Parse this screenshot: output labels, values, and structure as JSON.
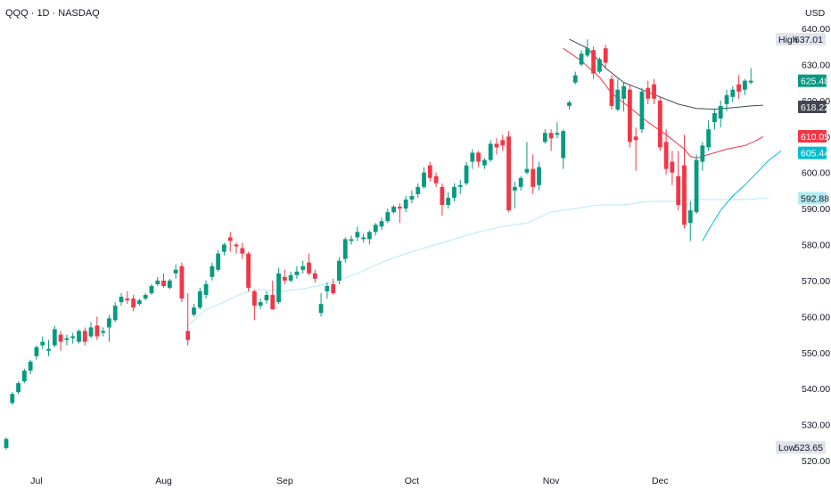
{
  "chart_data": {
    "type": "candlestick",
    "title": "QQQ · 1D · NASDAQ",
    "currency": "USD",
    "y_axis": {
      "ticks": [
        520,
        530,
        540,
        550,
        560,
        570,
        580,
        590,
        600,
        610,
        620,
        630,
        640
      ],
      "tick_labels": [
        "520.00",
        "530.00",
        "540.00",
        "550.00",
        "560.00",
        "570.00",
        "580.00",
        "590.00",
        "600.00",
        "610.00",
        "620.00",
        "630.00",
        "640.00"
      ],
      "range": [
        518.5,
        642.5
      ]
    },
    "x_axis": {
      "labels": [
        {
          "label": "Jul",
          "index": 5
        },
        {
          "label": "Aug",
          "index": 26
        },
        {
          "label": "Sep",
          "index": 46
        },
        {
          "label": "Oct",
          "index": 67
        },
        {
          "label": "Nov",
          "index": 90
        },
        {
          "label": "Dec",
          "index": 108
        }
      ]
    },
    "price_tags": [
      {
        "prefix": "High",
        "text": "637.01",
        "value": 637.01,
        "bg": "#e0e3eb",
        "fg": "#131722"
      },
      {
        "prefix": "",
        "text": "625.48",
        "value": 625.48,
        "bg": "#089981",
        "fg": "#ffffff"
      },
      {
        "prefix": "",
        "text": "618.22",
        "value": 618.22,
        "bg": "#434651",
        "fg": "#ffffff"
      },
      {
        "prefix": "",
        "text": "610.05",
        "value": 610.05,
        "bg": "#f23645",
        "fg": "#ffffff"
      },
      {
        "prefix": "",
        "text": "605.44",
        "value": 605.44,
        "bg": "#00bcd4",
        "fg": "#ffffff"
      },
      {
        "prefix": "",
        "text": "592.88",
        "value": 592.88,
        "bg": "#b2ebf2",
        "fg": "#131722"
      },
      {
        "prefix": "Low",
        "text": "523.65",
        "value": 523.65,
        "bg": "#e0e3eb",
        "fg": "#131722"
      }
    ],
    "colors": {
      "up": "#089981",
      "down": "#f23645",
      "line_black": "#434651",
      "line_red": "#f23645",
      "line_cyan": "#00bcd4",
      "line_lightcyan": "#b2ebf2"
    },
    "candles": [
      [
        523.5,
        526.5,
        523.0,
        526.0
      ],
      [
        536.0,
        539.0,
        535.5,
        538.5
      ],
      [
        539.0,
        542.0,
        538.5,
        541.5
      ],
      [
        542.0,
        545.5,
        541.5,
        545.0
      ],
      [
        545.0,
        548.0,
        544.0,
        547.5
      ],
      [
        549.0,
        552.0,
        548.0,
        551.5
      ],
      [
        552.0,
        554.5,
        551.0,
        553.0
      ],
      [
        550.5,
        553.5,
        549.0,
        551.0
      ],
      [
        552.0,
        557.5,
        551.5,
        556.5
      ],
      [
        555.0,
        556.0,
        550.5,
        553.0
      ],
      [
        553.5,
        555.0,
        552.0,
        554.0
      ],
      [
        554.0,
        555.5,
        552.5,
        554.5
      ],
      [
        553.0,
        556.5,
        552.5,
        556.0
      ],
      [
        556.0,
        557.0,
        552.0,
        553.0
      ],
      [
        554.5,
        558.5,
        554.0,
        557.0
      ],
      [
        557.5,
        560.0,
        553.5,
        554.5
      ],
      [
        555.5,
        557.0,
        554.5,
        556.0
      ],
      [
        557.0,
        560.5,
        553.0,
        559.5
      ],
      [
        559.0,
        564.0,
        558.5,
        563.0
      ],
      [
        564.0,
        566.5,
        563.0,
        565.5
      ],
      [
        565.0,
        567.0,
        563.5,
        564.5
      ],
      [
        565.0,
        566.0,
        561.5,
        562.5
      ],
      [
        563.5,
        565.0,
        563.0,
        564.5
      ],
      [
        565.0,
        566.5,
        564.5,
        566.0
      ],
      [
        566.5,
        569.0,
        566.0,
        568.5
      ],
      [
        569.0,
        571.0,
        568.5,
        570.0
      ],
      [
        570.0,
        572.0,
        568.0,
        568.5
      ],
      [
        568.0,
        570.5,
        567.5,
        570.0
      ],
      [
        572.0,
        574.5,
        570.5,
        573.0
      ],
      [
        574.0,
        575.0,
        564.0,
        565.0
      ],
      [
        556.0,
        566.5,
        552.0,
        553.5
      ],
      [
        560.5,
        563.5,
        560.0,
        562.5
      ],
      [
        562.5,
        568.0,
        562.0,
        567.0
      ],
      [
        566.0,
        570.0,
        565.0,
        569.0
      ],
      [
        571.0,
        575.0,
        570.0,
        574.0
      ],
      [
        573.0,
        578.5,
        572.5,
        577.5
      ],
      [
        578.0,
        580.5,
        577.0,
        580.0
      ],
      [
        582.0,
        583.5,
        578.0,
        581.0
      ],
      [
        580.0,
        580.5,
        577.5,
        579.5
      ],
      [
        579.0,
        580.5,
        576.0,
        577.5
      ],
      [
        577.5,
        578.0,
        567.0,
        568.0
      ],
      [
        567.0,
        567.5,
        559.0,
        563.0
      ],
      [
        563.0,
        565.0,
        562.0,
        564.0
      ],
      [
        564.5,
        567.0,
        563.5,
        566.0
      ],
      [
        566.0,
        570.0,
        562.0,
        562.0
      ],
      [
        564.0,
        573.5,
        563.5,
        572.0
      ],
      [
        571.0,
        573.0,
        569.0,
        570.0
      ],
      [
        570.0,
        572.5,
        569.5,
        571.5
      ],
      [
        571.5,
        574.0,
        570.5,
        572.5
      ],
      [
        573.0,
        575.5,
        572.0,
        574.0
      ],
      [
        575.0,
        577.5,
        571.5,
        572.0
      ],
      [
        572.0,
        573.0,
        569.5,
        570.5
      ],
      [
        561.0,
        566.5,
        560.0,
        563.5
      ],
      [
        567.0,
        569.5,
        565.0,
        568.5
      ],
      [
        569.0,
        570.5,
        566.0,
        566.5
      ],
      [
        570.0,
        576.5,
        569.0,
        575.5
      ],
      [
        576.0,
        582.0,
        575.0,
        581.5
      ],
      [
        581.0,
        582.5,
        580.0,
        581.5
      ],
      [
        582.0,
        585.0,
        581.0,
        583.5
      ],
      [
        581.5,
        583.0,
        580.5,
        582.0
      ],
      [
        581.5,
        584.0,
        580.0,
        583.5
      ],
      [
        583.5,
        586.0,
        582.5,
        585.5
      ],
      [
        585.0,
        587.5,
        584.0,
        586.5
      ],
      [
        586.5,
        590.0,
        586.0,
        589.0
      ],
      [
        589.0,
        591.0,
        588.5,
        590.5
      ],
      [
        590.5,
        591.5,
        586.0,
        590.0
      ],
      [
        590.0,
        593.5,
        589.0,
        592.5
      ],
      [
        592.5,
        595.0,
        591.5,
        593.5
      ],
      [
        594.0,
        597.0,
        593.0,
        596.0
      ],
      [
        596.0,
        601.5,
        595.5,
        600.0
      ],
      [
        602.0,
        603.0,
        597.5,
        598.5
      ],
      [
        599.0,
        600.0,
        596.0,
        597.0
      ],
      [
        596.0,
        597.0,
        588.0,
        591.0
      ],
      [
        591.0,
        594.5,
        590.0,
        593.0
      ],
      [
        593.0,
        597.0,
        592.0,
        596.0
      ],
      [
        596.0,
        598.0,
        594.0,
        596.5
      ],
      [
        597.0,
        603.0,
        596.5,
        602.0
      ],
      [
        603.0,
        606.5,
        601.0,
        605.5
      ],
      [
        605.5,
        606.0,
        601.5,
        603.0
      ],
      [
        602.0,
        604.0,
        601.0,
        603.5
      ],
      [
        603.5,
        609.0,
        603.0,
        608.0
      ],
      [
        608.0,
        609.5,
        605.0,
        607.0
      ],
      [
        609.0,
        610.5,
        606.0,
        607.5
      ],
      [
        610.0,
        611.5,
        589.0,
        589.5
      ],
      [
        595.0,
        597.5,
        590.0,
        596.0
      ],
      [
        596.0,
        599.0,
        595.0,
        598.5
      ],
      [
        600.0,
        608.5,
        599.5,
        601.0
      ],
      [
        601.0,
        605.0,
        594.0,
        596.0
      ],
      [
        596.5,
        603.0,
        595.0,
        601.5
      ],
      [
        608.5,
        612.0,
        608.0,
        611.0
      ],
      [
        611.0,
        612.0,
        606.0,
        609.5
      ],
      [
        610.5,
        614.0,
        609.5,
        611.0
      ],
      [
        604.0,
        612.0,
        601.0,
        611.5
      ],
      [
        618.5,
        620.0,
        617.5,
        619.5
      ],
      [
        625.0,
        628.0,
        624.5,
        627.0
      ],
      [
        630.0,
        634.0,
        629.5,
        633.0
      ],
      [
        632.5,
        637.0,
        632.0,
        634.5
      ],
      [
        634.0,
        635.0,
        626.0,
        627.5
      ],
      [
        628.0,
        632.0,
        627.5,
        631.5
      ],
      [
        634.5,
        635.5,
        629.0,
        630.5
      ],
      [
        626.0,
        627.0,
        617.5,
        618.5
      ],
      [
        617.5,
        626.0,
        617.0,
        623.0
      ],
      [
        620.5,
        625.0,
        617.0,
        624.0
      ],
      [
        623.0,
        624.5,
        607.0,
        608.5
      ],
      [
        610.0,
        612.5,
        600.5,
        609.0
      ],
      [
        612.0,
        623.5,
        611.0,
        622.5
      ],
      [
        623.5,
        625.5,
        619.0,
        620.5
      ],
      [
        624.5,
        626.0,
        619.0,
        620.5
      ],
      [
        620.0,
        621.0,
        606.0,
        607.0
      ],
      [
        608.5,
        612.0,
        599.5,
        601.0
      ],
      [
        603.0,
        606.0,
        596.5,
        600.0
      ],
      [
        599.0,
        606.0,
        589.5,
        591.0
      ],
      [
        602.0,
        610.5,
        584.5,
        585.5
      ],
      [
        586.0,
        592.0,
        581.0,
        589.5
      ],
      [
        589.0,
        605.0,
        588.5,
        603.5
      ],
      [
        603.0,
        608.5,
        600.5,
        607.5
      ],
      [
        607.0,
        614.5,
        606.0,
        612.0
      ],
      [
        614.0,
        617.5,
        612.0,
        616.5
      ],
      [
        615.0,
        620.0,
        612.5,
        618.5
      ],
      [
        619.0,
        623.0,
        617.0,
        621.5
      ],
      [
        621.0,
        624.0,
        619.5,
        623.0
      ],
      [
        624.5,
        627.0,
        620.5,
        622.5
      ],
      [
        623.0,
        626.0,
        621.5,
        625.5
      ],
      [
        625.0,
        629.0,
        624.5,
        625.5
      ]
    ],
    "line_black": [
      [
        93,
        637.0
      ],
      [
        96,
        634.5
      ],
      [
        99,
        629.0
      ],
      [
        102,
        625.0
      ],
      [
        105,
        623.0
      ],
      [
        108,
        621.0
      ],
      [
        111,
        619.0
      ],
      [
        114,
        617.8
      ],
      [
        117,
        617.6
      ],
      [
        120,
        618.0
      ],
      [
        123,
        618.5
      ],
      [
        125,
        618.7
      ]
    ],
    "line_red": [
      [
        92,
        634.5
      ],
      [
        95,
        631.0
      ],
      [
        98,
        626.5
      ],
      [
        100,
        622.0
      ],
      [
        103,
        618.0
      ],
      [
        106,
        614.0
      ],
      [
        109,
        610.5
      ],
      [
        112,
        606.5
      ],
      [
        113,
        604.5
      ],
      [
        114,
        604.0
      ],
      [
        116,
        605.0
      ],
      [
        119,
        606.5
      ],
      [
        122,
        607.5
      ],
      [
        124,
        609.0
      ],
      [
        125,
        610.0
      ]
    ],
    "line_cyan": [
      [
        115,
        581.0
      ],
      [
        116,
        584.0
      ],
      [
        118,
        589.5
      ],
      [
        120,
        593.5
      ],
      [
        122,
        596.5
      ],
      [
        124,
        600.0
      ],
      [
        126,
        603.5
      ],
      [
        128,
        606.0
      ]
    ],
    "line_lightcyan": [
      [
        30,
        557.5
      ],
      [
        33,
        562.0
      ],
      [
        36,
        564.0
      ],
      [
        39,
        566.5
      ],
      [
        42,
        567.5
      ],
      [
        46,
        567.0
      ],
      [
        50,
        568.0
      ],
      [
        54,
        569.5
      ],
      [
        58,
        572.0
      ],
      [
        62,
        575.0
      ],
      [
        66,
        577.5
      ],
      [
        70,
        579.5
      ],
      [
        74,
        581.5
      ],
      [
        78,
        583.5
      ],
      [
        82,
        585.0
      ],
      [
        86,
        586.0
      ],
      [
        90,
        589.0
      ],
      [
        94,
        590.0
      ],
      [
        98,
        591.0
      ],
      [
        102,
        591.0
      ],
      [
        106,
        592.0
      ],
      [
        110,
        592.0
      ],
      [
        114,
        592.5
      ],
      [
        118,
        592.5
      ],
      [
        122,
        592.5
      ],
      [
        126,
        592.9
      ]
    ]
  }
}
